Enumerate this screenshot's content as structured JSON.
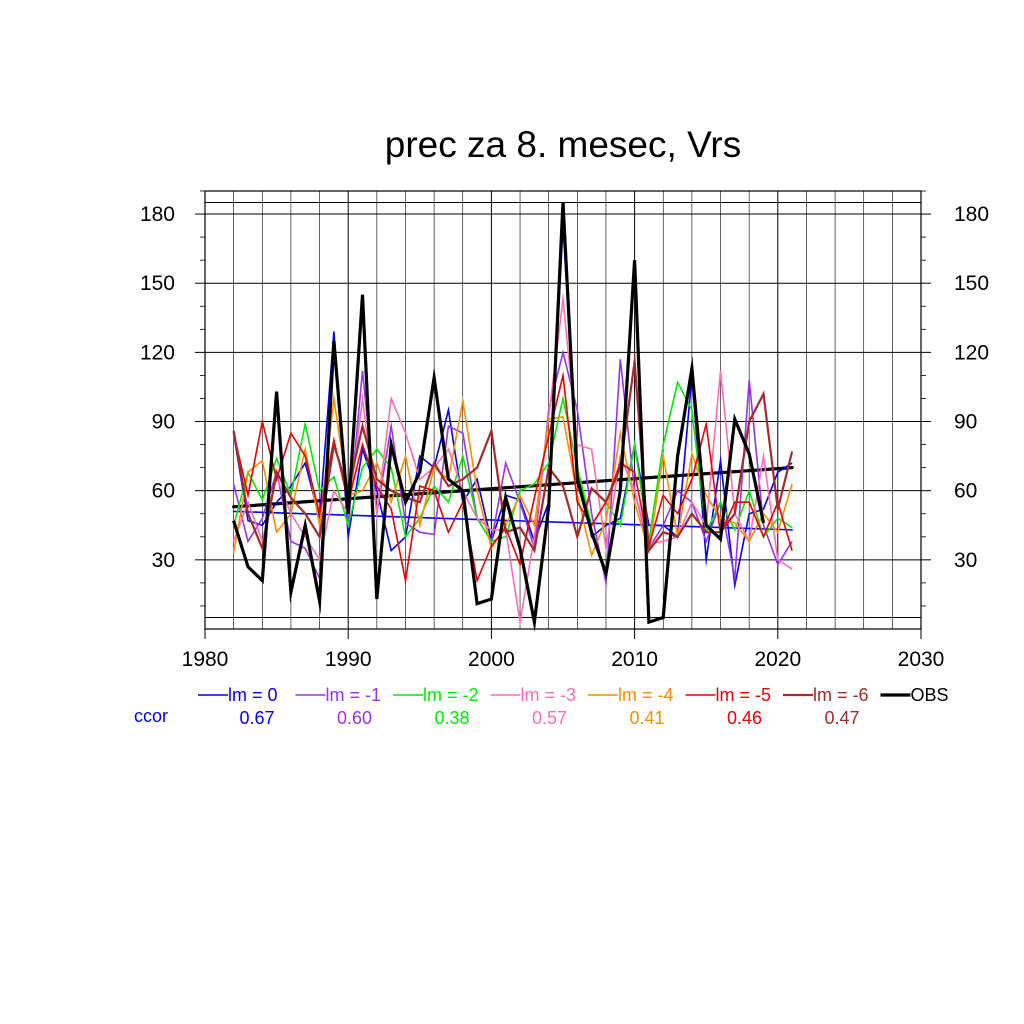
{
  "chart_data": {
    "type": "line",
    "title": "prec za 8. mesec, Vrs",
    "xlabel": "",
    "ylabel": "",
    "xlim": [
      1980,
      2030
    ],
    "ylim": [
      0,
      190
    ],
    "x_ticks": [
      1980,
      1990,
      2000,
      2010,
      2020,
      2030
    ],
    "y_ticks": [
      30,
      60,
      90,
      120,
      150,
      180
    ],
    "y_ticks_right": true,
    "grid": true,
    "legend_position": "below",
    "x": [
      1982,
      1983,
      1984,
      1985,
      1986,
      1987,
      1988,
      1989,
      1990,
      1991,
      1992,
      1993,
      1994,
      1995,
      1996,
      1997,
      1998,
      1999,
      2000,
      2001,
      2002,
      2003,
      2004,
      2005,
      2006,
      2007,
      2008,
      2009,
      2010,
      2011,
      2012,
      2013,
      2014,
      2015,
      2016,
      2017,
      2018,
      2019,
      2020,
      2021
    ],
    "series": [
      {
        "name": "lm = 0",
        "color": "#0000ff",
        "width": 1.6,
        "ccor": "0.67",
        "values": [
          85,
          47,
          45,
          55,
          62,
          72,
          48,
          129,
          40,
          78,
          60,
          34,
          40,
          75,
          70,
          95,
          55,
          65,
          38,
          58,
          56,
          38,
          55,
          175,
          70,
          40,
          45,
          48,
          80,
          45,
          45,
          40,
          110,
          30,
          73,
          19,
          50,
          52,
          68,
          72
        ]
      },
      {
        "name": "lm = -1",
        "color": "#9933ee",
        "width": 1.6,
        "ccor": "0.60",
        "values": [
          63,
          38,
          48,
          68,
          38,
          35,
          22,
          122,
          45,
          112,
          50,
          88,
          46,
          42,
          41,
          88,
          85,
          48,
          38,
          72,
          55,
          35,
          95,
          120,
          95,
          50,
          20,
          117,
          60,
          35,
          45,
          60,
          55,
          38,
          55,
          22,
          108,
          45,
          28,
          38
        ]
      },
      {
        "name": "lm = -2",
        "color": "#00ee00",
        "width": 1.6,
        "ccor": "0.38",
        "values": [
          45,
          68,
          56,
          74,
          58,
          89,
          60,
          66,
          45,
          70,
          78,
          70,
          40,
          48,
          62,
          55,
          75,
          48,
          38,
          40,
          60,
          63,
          72,
          100,
          70,
          45,
          55,
          45,
          80,
          38,
          80,
          107,
          95,
          42,
          55,
          43,
          60,
          40,
          48,
          44
        ]
      },
      {
        "name": "lm = -3",
        "color": "#ff6eb4",
        "width": 1.6,
        "ccor": "0.57",
        "values": [
          38,
          55,
          38,
          66,
          50,
          40,
          30,
          60,
          50,
          100,
          50,
          100,
          85,
          65,
          70,
          78,
          60,
          48,
          43,
          43,
          3,
          40,
          92,
          143,
          80,
          78,
          35,
          75,
          60,
          37,
          38,
          40,
          55,
          45,
          112,
          50,
          38,
          75,
          30,
          26
        ]
      },
      {
        "name": "lm = -4",
        "color": "#ff8c00",
        "width": 1.6,
        "ccor": "0.41",
        "values": [
          33,
          68,
          73,
          42,
          50,
          78,
          45,
          100,
          58,
          60,
          72,
          55,
          75,
          45,
          70,
          65,
          99,
          60,
          35,
          45,
          58,
          45,
          91,
          92,
          58,
          32,
          47,
          85,
          55,
          34,
          75,
          40,
          76,
          58,
          48,
          46,
          38,
          50,
          42,
          63
        ]
      },
      {
        "name": "lm = -5",
        "color": "#ee0000",
        "width": 1.6,
        "ccor": "0.46",
        "values": [
          85,
          58,
          90,
          65,
          85,
          75,
          50,
          82,
          55,
          80,
          62,
          52,
          21,
          62,
          60,
          42,
          55,
          21,
          36,
          44,
          28,
          57,
          84,
          110,
          55,
          45,
          55,
          72,
          68,
          36,
          58,
          50,
          65,
          89,
          41,
          55,
          55,
          40,
          55,
          34
        ]
      },
      {
        "name": "lm = -6",
        "color": "#a52a2a",
        "width": 2.2,
        "ccor": "0.47",
        "values": [
          86,
          50,
          35,
          68,
          57,
          50,
          40,
          80,
          60,
          88,
          65,
          60,
          57,
          55,
          72,
          62,
          65,
          70,
          86,
          42,
          44,
          34,
          70,
          62,
          40,
          61,
          55,
          70,
          116,
          34,
          42,
          40,
          50,
          42,
          42,
          50,
          90,
          102,
          52,
          77
        ]
      },
      {
        "name": "OBS",
        "color": "#000000",
        "width": 3.2,
        "values": [
          47,
          27,
          21,
          103,
          16,
          45,
          12,
          125,
          50,
          145,
          13,
          80,
          55,
          68,
          109,
          65,
          60,
          11,
          13,
          57,
          35,
          3,
          53,
          185,
          65,
          42,
          24,
          60,
          160,
          3,
          5,
          75,
          113,
          45,
          39,
          91,
          76,
          46,
          null,
          null
        ]
      }
    ],
    "trend_lines": [
      {
        "of": "lm = 0",
        "color": "#0000ff",
        "width": 1.6,
        "x": [
          1982,
          2021
        ],
        "y": [
          51,
          43
        ]
      },
      {
        "of": "OBS",
        "color": "#000000",
        "width": 3.2,
        "x": [
          1982,
          2021
        ],
        "y": [
          53,
          70
        ]
      }
    ],
    "ccor_label": "ccor",
    "ccor_label_color": "#0000ff"
  }
}
